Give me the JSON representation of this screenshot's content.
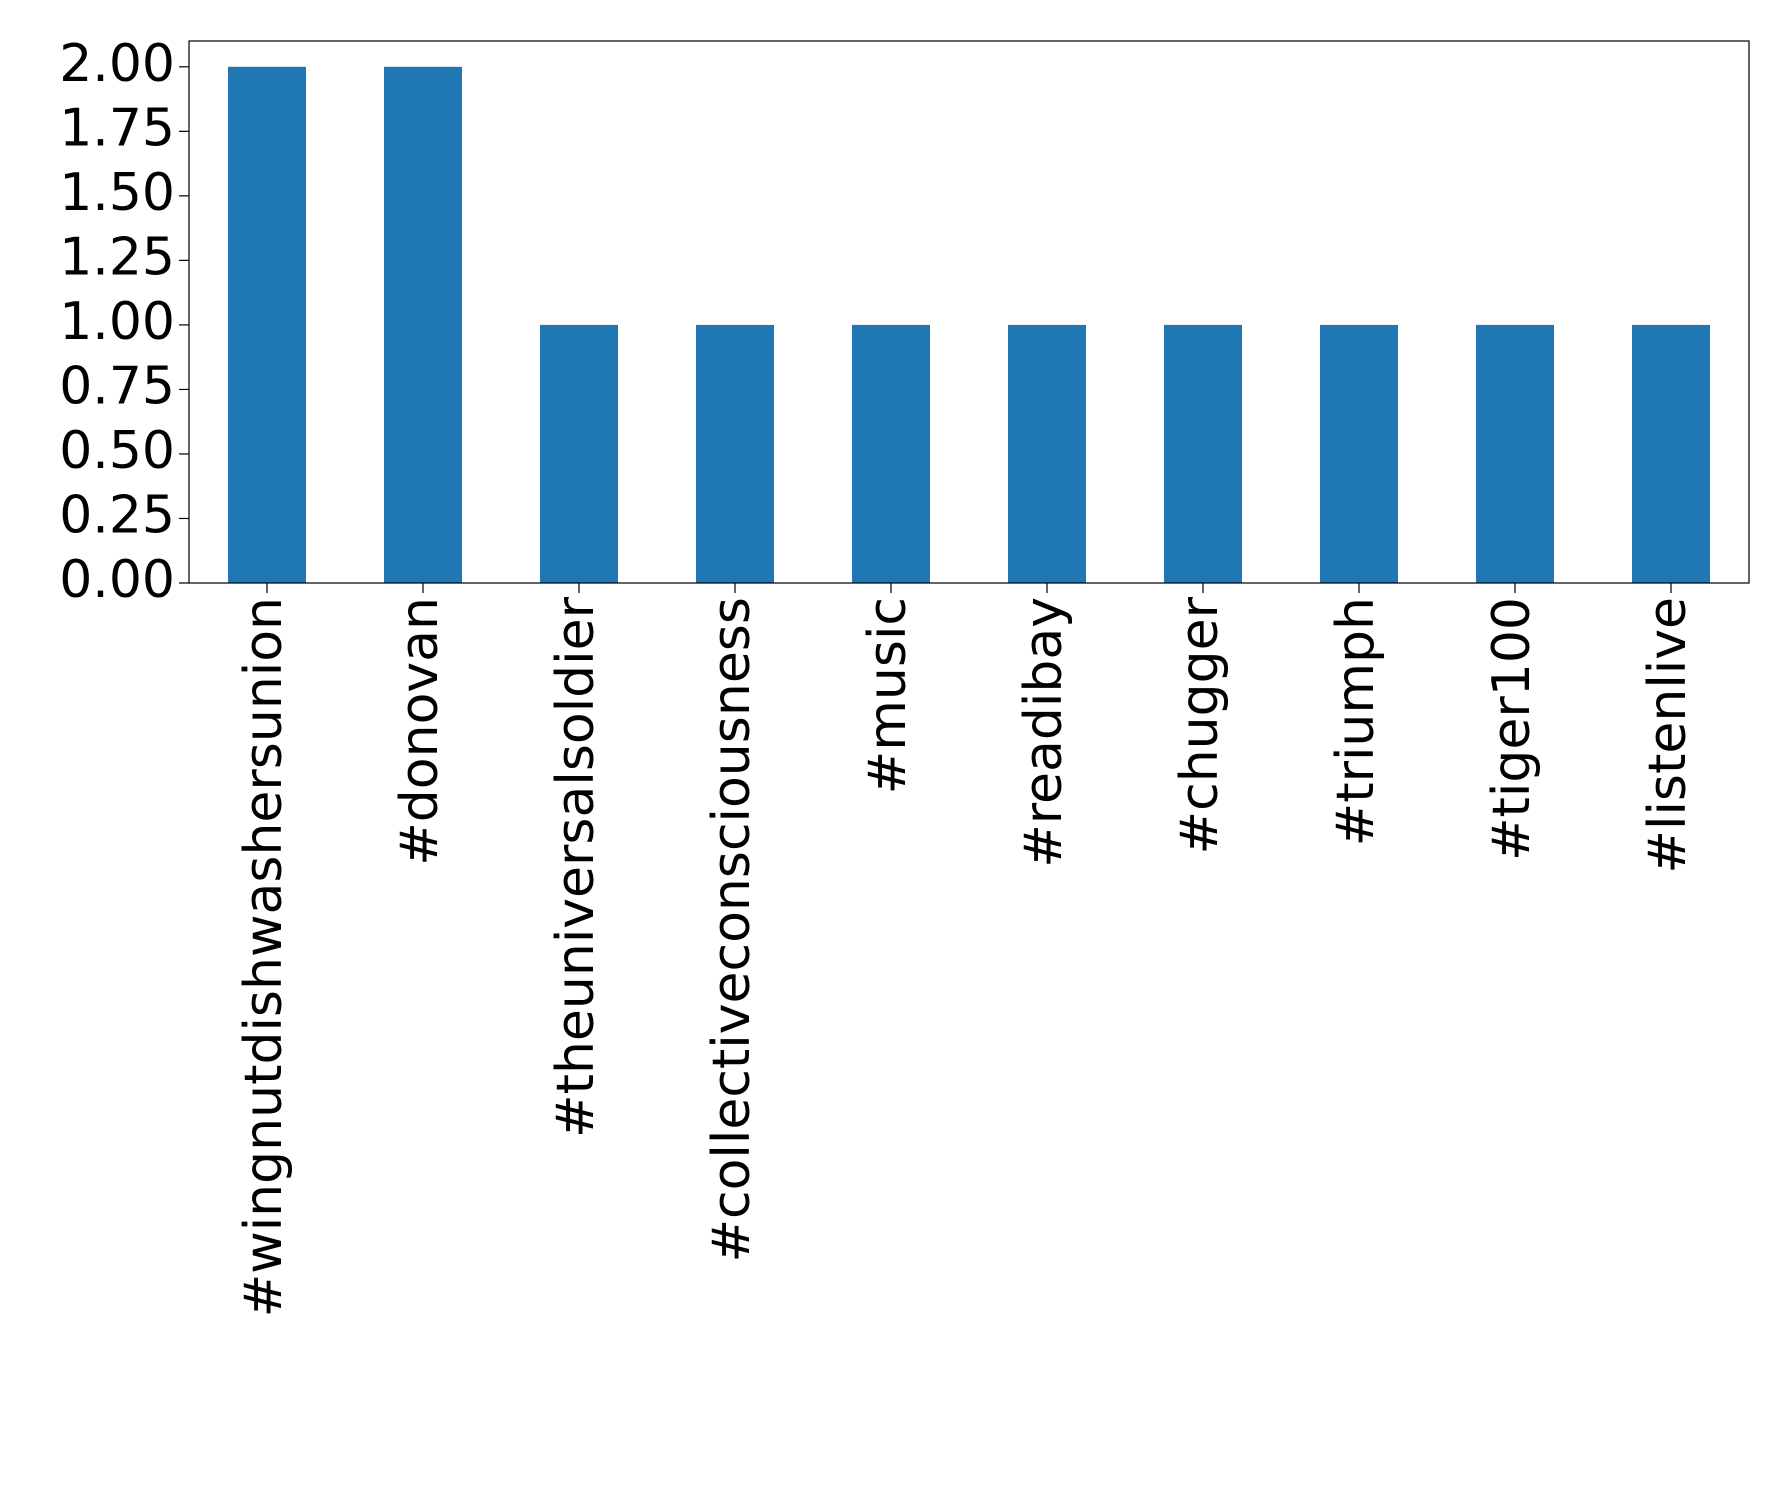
{
  "chart_data": {
    "type": "bar",
    "categories": [
      "#wingnutdishwashersunion",
      "#donovan",
      "#theuniversalsoldier",
      "#collectiveconsciousness",
      "#music",
      "#readibay",
      "#chugger",
      "#triumph",
      "#tiger100",
      "#listenlive"
    ],
    "values": [
      2,
      2,
      1,
      1,
      1,
      1,
      1,
      1,
      1,
      1
    ],
    "color": "#1f77b4",
    "ylim": [
      0,
      2.1
    ],
    "yticks": [
      {
        "value": 0,
        "label": "0.00"
      },
      {
        "value": 0.25,
        "label": "0.25"
      },
      {
        "value": 0.5,
        "label": "0.50"
      },
      {
        "value": 0.75,
        "label": "0.75"
      },
      {
        "value": 1,
        "label": "1.00"
      },
      {
        "value": 1.25,
        "label": "1.25"
      },
      {
        "value": 1.5,
        "label": "1.50"
      },
      {
        "value": 1.75,
        "label": "1.75"
      },
      {
        "value": 2,
        "label": "2.00"
      }
    ],
    "grid": false
  }
}
